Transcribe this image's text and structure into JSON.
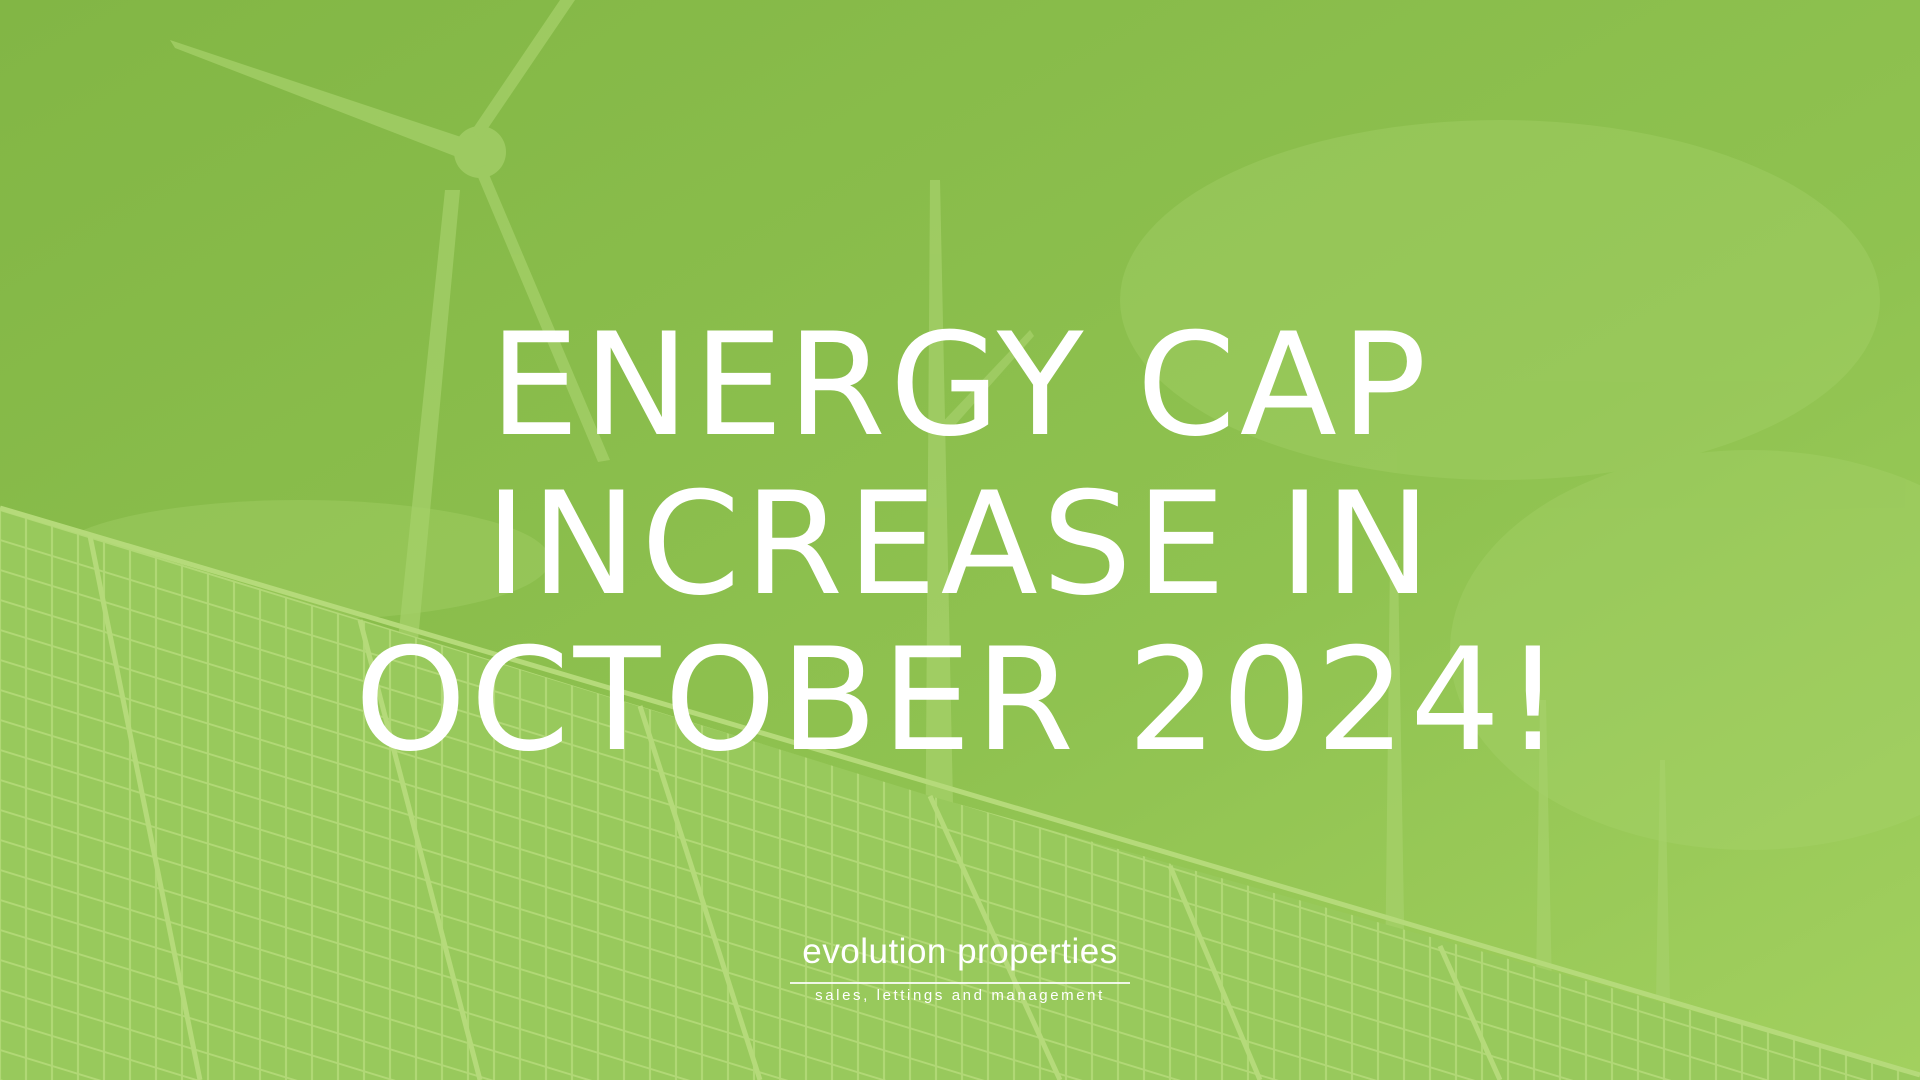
{
  "headline": {
    "lines": [
      "ENERGY CAP",
      "INCREASE IN",
      "OCTOBER 2024!"
    ]
  },
  "logo": {
    "name": "evolution properties",
    "tagline": "sales, lettings and management"
  }
}
